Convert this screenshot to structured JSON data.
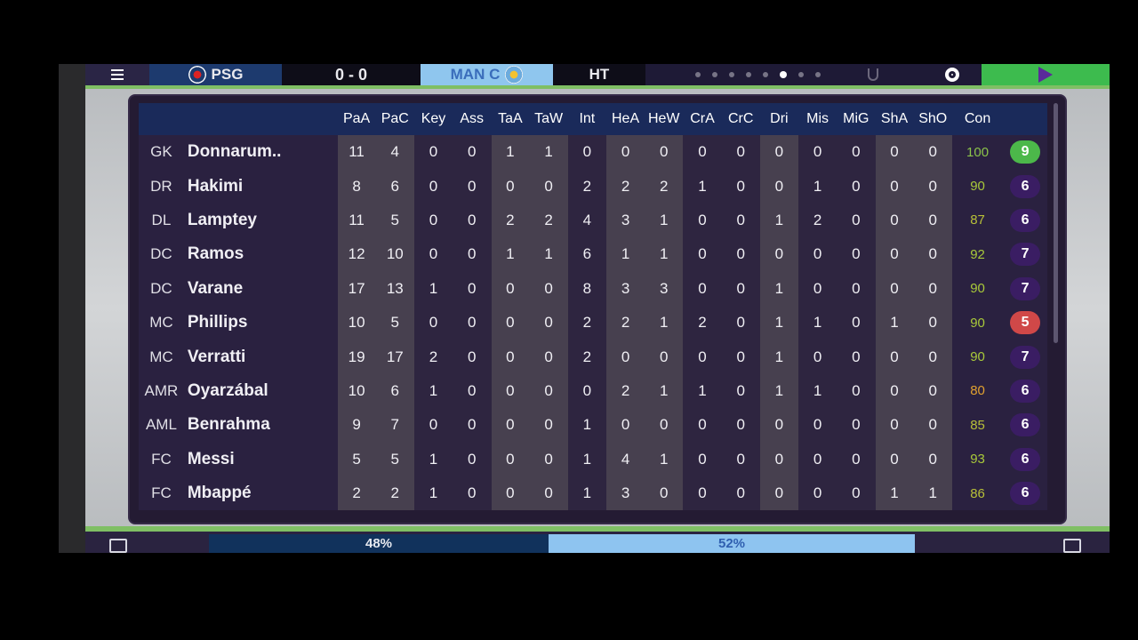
{
  "header": {
    "home_team": "PSG",
    "score": "0 - 0",
    "away_team": "MAN C",
    "period": "HT",
    "page_dots": 8,
    "active_dot": 5
  },
  "columns": [
    "",
    "",
    "PaA",
    "PaC",
    "Key",
    "Ass",
    "TaA",
    "TaW",
    "Int",
    "HeA",
    "HeW",
    "CrA",
    "CrC",
    "Dri",
    "Mis",
    "MiG",
    "ShA",
    "ShO",
    "Con",
    ""
  ],
  "players": [
    {
      "pos": "GK",
      "name": "Donnarum..",
      "stats": [
        "11",
        "4",
        "0",
        "0",
        "1",
        "1",
        "0",
        "0",
        "0",
        "0",
        "0",
        "0",
        "0",
        "0",
        "0",
        "0"
      ],
      "con": "100",
      "rating": "9",
      "rating_type": "good",
      "con_color": "#8bc34a"
    },
    {
      "pos": "DR",
      "name": "Hakimi",
      "stats": [
        "8",
        "6",
        "0",
        "0",
        "0",
        "0",
        "2",
        "2",
        "2",
        "1",
        "0",
        "0",
        "1",
        "0",
        "0",
        "0"
      ],
      "con": "90",
      "rating": "6",
      "rating_type": "normal",
      "con_color": "#a8c83a"
    },
    {
      "pos": "DL",
      "name": "Lamptey",
      "stats": [
        "11",
        "5",
        "0",
        "0",
        "2",
        "2",
        "4",
        "3",
        "1",
        "0",
        "0",
        "1",
        "2",
        "0",
        "0",
        "0"
      ],
      "con": "87",
      "rating": "6",
      "rating_type": "normal",
      "con_color": "#b7bf38"
    },
    {
      "pos": "DC",
      "name": "Ramos",
      "stats": [
        "12",
        "10",
        "0",
        "0",
        "1",
        "1",
        "6",
        "1",
        "1",
        "0",
        "0",
        "0",
        "0",
        "0",
        "0",
        "0"
      ],
      "con": "92",
      "rating": "7",
      "rating_type": "normal",
      "con_color": "#a8c83a"
    },
    {
      "pos": "DC",
      "name": "Varane",
      "stats": [
        "17",
        "13",
        "1",
        "0",
        "0",
        "0",
        "8",
        "3",
        "3",
        "0",
        "0",
        "1",
        "0",
        "0",
        "0",
        "0"
      ],
      "con": "90",
      "rating": "7",
      "rating_type": "normal",
      "con_color": "#a8c83a"
    },
    {
      "pos": "MC",
      "name": "Phillips",
      "stats": [
        "10",
        "5",
        "0",
        "0",
        "0",
        "0",
        "2",
        "2",
        "1",
        "2",
        "0",
        "1",
        "1",
        "0",
        "1",
        "0"
      ],
      "con": "90",
      "rating": "5",
      "rating_type": "bad",
      "con_color": "#a8c83a"
    },
    {
      "pos": "MC",
      "name": "Verratti",
      "stats": [
        "19",
        "17",
        "2",
        "0",
        "0",
        "0",
        "2",
        "0",
        "0",
        "0",
        "0",
        "1",
        "0",
        "0",
        "0",
        "0"
      ],
      "con": "90",
      "rating": "7",
      "rating_type": "normal",
      "con_color": "#a8c83a"
    },
    {
      "pos": "AMR",
      "name": "Oyarzábal",
      "stats": [
        "10",
        "6",
        "1",
        "0",
        "0",
        "0",
        "0",
        "2",
        "1",
        "1",
        "0",
        "1",
        "1",
        "0",
        "0",
        "0"
      ],
      "con": "80",
      "rating": "6",
      "rating_type": "normal",
      "con_color": "#e0a030"
    },
    {
      "pos": "AML",
      "name": "Benrahma",
      "stats": [
        "9",
        "7",
        "0",
        "0",
        "0",
        "0",
        "1",
        "0",
        "0",
        "0",
        "0",
        "0",
        "0",
        "0",
        "0",
        "0"
      ],
      "con": "85",
      "rating": "6",
      "rating_type": "normal",
      "con_color": "#b7bf38"
    },
    {
      "pos": "FC",
      "name": "Messi",
      "stats": [
        "5",
        "5",
        "1",
        "0",
        "0",
        "0",
        "1",
        "4",
        "1",
        "0",
        "0",
        "0",
        "0",
        "0",
        "0",
        "0"
      ],
      "con": "93",
      "rating": "6",
      "rating_type": "normal",
      "con_color": "#a8c83a"
    },
    {
      "pos": "FC",
      "name": "Mbappé",
      "stats": [
        "2",
        "2",
        "1",
        "0",
        "0",
        "0",
        "1",
        "3",
        "0",
        "0",
        "0",
        "0",
        "0",
        "0",
        "1",
        "1"
      ],
      "con": "86",
      "rating": "6",
      "rating_type": "normal",
      "con_color": "#b7bf38"
    }
  ],
  "possession": {
    "home": "48%",
    "away": "52%",
    "home_value": 48,
    "away_value": 52
  }
}
